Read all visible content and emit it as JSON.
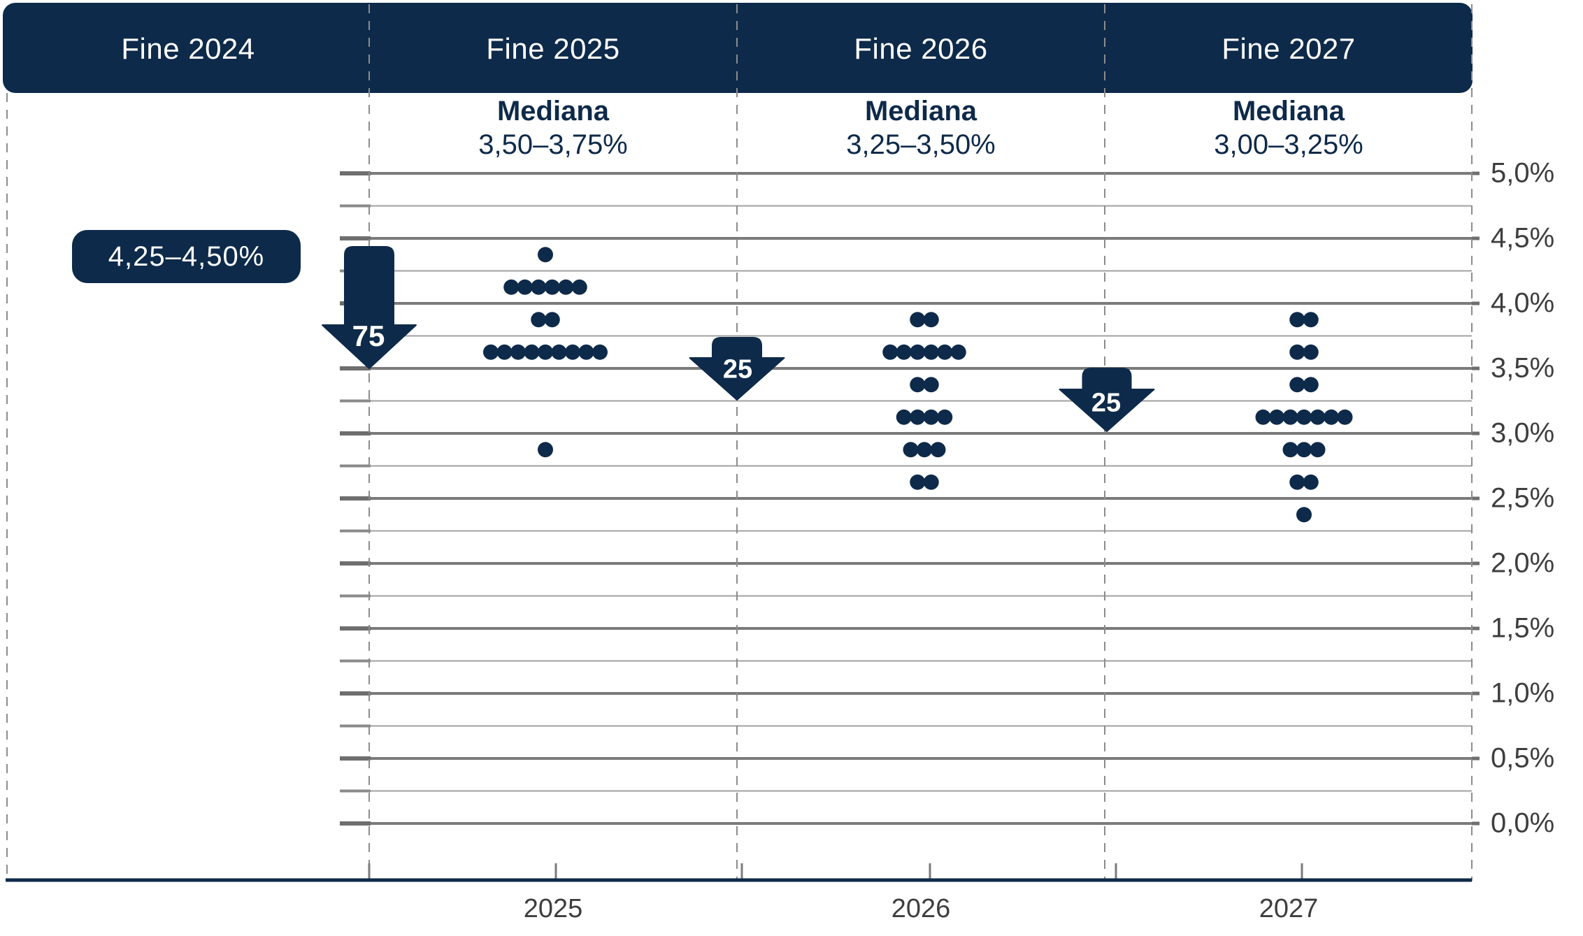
{
  "chart_data": {
    "type": "scatter",
    "subtype": "fomc-dot-plot",
    "unit": "%",
    "grid": "on",
    "y_axis": {
      "min": 0.0,
      "max": 5.0,
      "label_step": 0.5,
      "gridline_step": 0.25,
      "tick_labels": [
        "5,0%",
        "4,5%",
        "4,0%",
        "3,5%",
        "3,0%",
        "2,5%",
        "2,0%",
        "1,5%",
        "1,0%",
        "0,5%",
        "0,0%"
      ]
    },
    "columns": [
      {
        "header": "Fine 2024",
        "rate_label": "4,25–4,50%",
        "x_label": null,
        "median_title": null,
        "median_range": null,
        "dots": []
      },
      {
        "header": "Fine 2025",
        "rate_label": null,
        "x_label": "2025",
        "median_title": "Mediana",
        "median_range": "3,50–3,75%",
        "dots": [
          {
            "rate": 4.375,
            "count": 1
          },
          {
            "rate": 4.125,
            "count": 6
          },
          {
            "rate": 3.875,
            "count": 2
          },
          {
            "rate": 3.625,
            "count": 9
          },
          {
            "rate": 2.875,
            "count": 1
          }
        ]
      },
      {
        "header": "Fine 2026",
        "rate_label": null,
        "x_label": "2026",
        "median_title": "Mediana",
        "median_range": "3,25–3,50%",
        "dots": [
          {
            "rate": 3.875,
            "count": 2
          },
          {
            "rate": 3.625,
            "count": 6
          },
          {
            "rate": 3.375,
            "count": 2
          },
          {
            "rate": 3.125,
            "count": 4
          },
          {
            "rate": 2.875,
            "count": 3
          },
          {
            "rate": 2.625,
            "count": 2
          }
        ]
      },
      {
        "header": "Fine 2027",
        "rate_label": null,
        "x_label": "2027",
        "median_title": "Mediana",
        "median_range": "3,00–3,25%",
        "dots": [
          {
            "rate": 3.875,
            "count": 2
          },
          {
            "rate": 3.625,
            "count": 2
          },
          {
            "rate": 3.375,
            "count": 2
          },
          {
            "rate": 3.125,
            "count": 7
          },
          {
            "rate": 2.875,
            "count": 3
          },
          {
            "rate": 2.625,
            "count": 2
          },
          {
            "rate": 2.375,
            "count": 1
          }
        ]
      }
    ],
    "arrows": [
      {
        "label": "75",
        "cut_bp": 75,
        "tip_rate": 3.5
      },
      {
        "label": "25",
        "cut_bp": 25,
        "tip_rate": 3.25
      },
      {
        "label": "25",
        "cut_bp": 25,
        "tip_rate": 3.0
      }
    ],
    "colors": {
      "navy": "#0e2a4a",
      "grid_major": "#7b7b7b",
      "grid_minor": "#a1a1a1",
      "tick_dark": "#6e6e6e",
      "tick_mid": "#8a8a8a",
      "dashed_line": "#8c8c8c",
      "axis_label": "#3e3e3e",
      "background": "#ffffff"
    }
  }
}
